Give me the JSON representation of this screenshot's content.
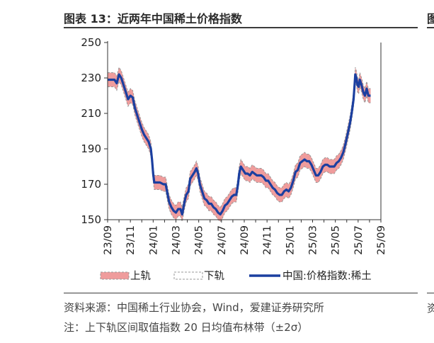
{
  "header": {
    "title": "图表 13：近两年中国稀土价格指数",
    "clipped_next_title": "图"
  },
  "footer": {
    "source": "资料来源：中国稀土行业协会，Wind，爱建证券研究所",
    "note": "注：上下轨区间取值指数 20 日均值布林带（±2σ）",
    "clipped_next_source": "资"
  },
  "colors": {
    "band": "#ef9c9c",
    "band_edge": "#999999",
    "index_line": "#1b3fa0",
    "axis": "#333333"
  },
  "chart_data": {
    "type": "line",
    "title": "近两年中国稀土价格指数",
    "xlabel": "",
    "ylabel": "",
    "xlim": [
      0,
      24
    ],
    "ylim": [
      150,
      250
    ],
    "yticks": [
      150,
      170,
      190,
      210,
      230,
      250
    ],
    "grid": false,
    "x_tick_labels": [
      {
        "x": 0,
        "label": "23/09"
      },
      {
        "x": 2,
        "label": "23/11"
      },
      {
        "x": 4,
        "label": "24/01"
      },
      {
        "x": 6,
        "label": "24/03"
      },
      {
        "x": 8,
        "label": "24/05"
      },
      {
        "x": 10,
        "label": "24/07"
      },
      {
        "x": 12,
        "label": "24/09"
      },
      {
        "x": 14,
        "label": "24/11"
      },
      {
        "x": 16,
        "label": "25/01"
      },
      {
        "x": 18,
        "label": "25/03"
      },
      {
        "x": 20,
        "label": "25/05"
      },
      {
        "x": 22,
        "label": "25/07"
      },
      {
        "x": 24,
        "label": "25/09"
      }
    ],
    "legend": [
      "上轨",
      "下轨",
      "中国:价格指数:稀土"
    ],
    "legend_position": "bottom",
    "series": [
      {
        "name": "中国:价格指数:稀土",
        "points": [
          [
            0,
            229
          ],
          [
            0.3,
            229
          ],
          [
            0.6,
            229
          ],
          [
            0.8,
            227
          ],
          [
            1.0,
            232
          ],
          [
            1.2,
            230
          ],
          [
            1.4,
            226
          ],
          [
            1.6,
            222
          ],
          [
            1.8,
            218
          ],
          [
            2.0,
            220
          ],
          [
            2.2,
            219
          ],
          [
            2.4,
            213
          ],
          [
            2.6,
            209
          ],
          [
            2.8,
            205
          ],
          [
            3.0,
            201
          ],
          [
            3.2,
            198
          ],
          [
            3.4,
            196
          ],
          [
            3.6,
            194
          ],
          [
            3.8,
            190
          ],
          [
            3.9,
            184
          ],
          [
            4.0,
            176
          ],
          [
            4.1,
            171
          ],
          [
            4.3,
            171
          ],
          [
            4.6,
            171
          ],
          [
            4.9,
            170
          ],
          [
            5.1,
            170
          ],
          [
            5.25,
            165
          ],
          [
            5.4,
            160
          ],
          [
            5.6,
            157
          ],
          [
            5.8,
            155
          ],
          [
            6.0,
            154
          ],
          [
            6.2,
            156
          ],
          [
            6.4,
            156
          ],
          [
            6.55,
            153
          ],
          [
            6.75,
            160
          ],
          [
            6.9,
            164
          ],
          [
            7.1,
            166
          ],
          [
            7.25,
            173
          ],
          [
            7.45,
            175
          ],
          [
            7.65,
            177
          ],
          [
            7.8,
            179
          ],
          [
            7.95,
            176
          ],
          [
            8.1,
            170
          ],
          [
            8.3,
            166
          ],
          [
            8.5,
            162
          ],
          [
            8.7,
            161
          ],
          [
            8.9,
            159
          ],
          [
            9.1,
            159
          ],
          [
            9.3,
            157
          ],
          [
            9.5,
            156
          ],
          [
            9.7,
            154
          ],
          [
            9.9,
            153
          ],
          [
            10.1,
            155
          ],
          [
            10.3,
            158
          ],
          [
            10.5,
            159
          ],
          [
            10.7,
            161
          ],
          [
            10.9,
            163
          ],
          [
            11.1,
            164
          ],
          [
            11.3,
            164
          ],
          [
            11.45,
            170
          ],
          [
            11.55,
            176
          ],
          [
            11.7,
            180
          ],
          [
            11.9,
            178
          ],
          [
            12.1,
            176
          ],
          [
            12.3,
            176
          ],
          [
            12.5,
            175
          ],
          [
            12.7,
            177
          ],
          [
            12.9,
            176
          ],
          [
            13.1,
            175
          ],
          [
            13.3,
            175
          ],
          [
            13.5,
            175
          ],
          [
            13.7,
            174
          ],
          [
            13.9,
            172
          ],
          [
            14.1,
            172
          ],
          [
            14.3,
            170
          ],
          [
            14.5,
            168
          ],
          [
            14.7,
            167
          ],
          [
            14.9,
            165
          ],
          [
            15.1,
            164
          ],
          [
            15.3,
            164
          ],
          [
            15.5,
            166
          ],
          [
            15.7,
            167
          ],
          [
            15.9,
            166
          ],
          [
            16.1,
            168
          ],
          [
            16.3,
            172
          ],
          [
            16.5,
            177
          ],
          [
            16.7,
            178
          ],
          [
            16.9,
            182
          ],
          [
            17.1,
            183
          ],
          [
            17.3,
            184
          ],
          [
            17.5,
            183
          ],
          [
            17.7,
            183
          ],
          [
            17.9,
            181
          ],
          [
            18.1,
            178
          ],
          [
            18.3,
            175
          ],
          [
            18.5,
            175
          ],
          [
            18.7,
            177
          ],
          [
            18.9,
            180
          ],
          [
            19.1,
            181
          ],
          [
            19.3,
            181
          ],
          [
            19.5,
            180
          ],
          [
            19.7,
            180
          ],
          [
            19.9,
            180
          ],
          [
            20.1,
            182
          ],
          [
            20.3,
            183
          ],
          [
            20.5,
            185
          ],
          [
            20.7,
            188
          ],
          [
            20.9,
            193
          ],
          [
            21.1,
            199
          ],
          [
            21.3,
            205
          ],
          [
            21.45,
            211
          ],
          [
            21.6,
            218
          ],
          [
            21.7,
            227
          ],
          [
            21.75,
            232
          ],
          [
            21.85,
            230
          ],
          [
            21.95,
            226
          ],
          [
            22.05,
            225
          ],
          [
            22.15,
            229
          ],
          [
            22.3,
            226
          ],
          [
            22.45,
            222
          ],
          [
            22.6,
            220
          ],
          [
            22.75,
            224
          ],
          [
            22.9,
            220
          ],
          [
            23.1,
            220
          ]
        ]
      }
    ],
    "band": {
      "name_upper": "上轨",
      "name_lower": "下轨",
      "half_width_points": 4
    }
  }
}
